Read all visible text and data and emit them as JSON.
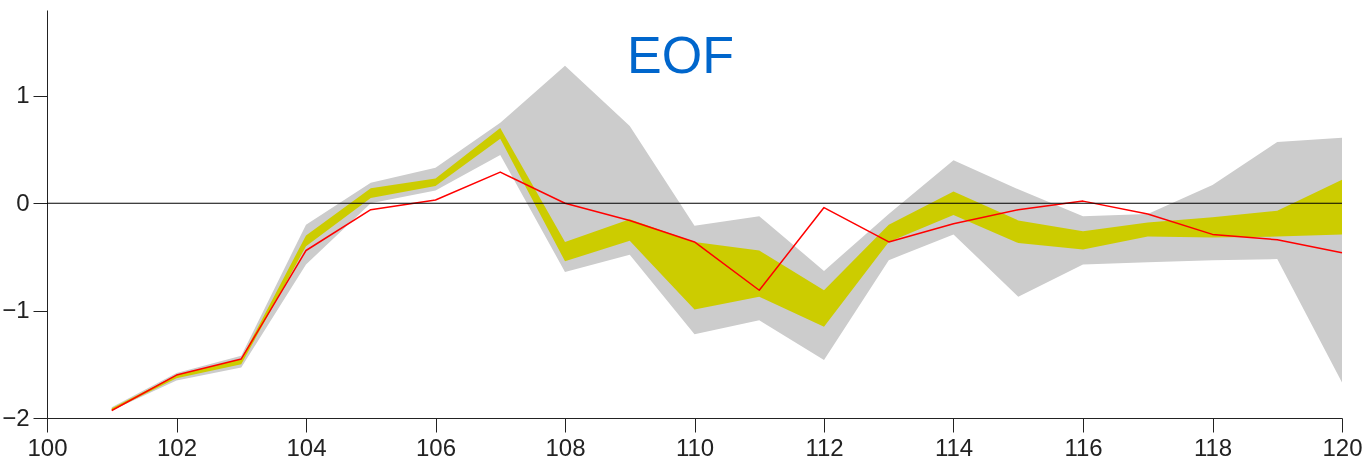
{
  "chart_data": {
    "type": "line",
    "title": "EOF",
    "x": [
      101,
      102,
      103,
      104,
      105,
      106,
      107,
      108,
      109,
      110,
      111,
      112,
      113,
      114,
      115,
      116,
      117,
      118,
      119,
      120
    ],
    "xlim": [
      100,
      120
    ],
    "xticks": [
      100,
      102,
      104,
      106,
      108,
      110,
      112,
      114,
      116,
      118,
      120
    ],
    "ylim": [
      -2,
      1.8
    ],
    "yticks": [
      -2,
      -1,
      0,
      1
    ],
    "series": [
      {
        "type": "area",
        "color": "#cccccc",
        "values": [
          null,
          null,
          null,
          null,
          null,
          null,
          null,
          null,
          null,
          null,
          null,
          null,
          null,
          null,
          null,
          null,
          null,
          null,
          null,
          null
        ],
        "lower": [
          -1.93,
          -1.65,
          -1.53,
          -0.57,
          0.0,
          0.12,
          0.45,
          -0.64,
          -0.48,
          -1.22,
          -1.09,
          -1.46,
          -0.53,
          -0.29,
          -0.87,
          -0.57,
          -0.55,
          -0.53,
          -0.52,
          -1.67
        ],
        "upper": [
          -1.9,
          -1.58,
          -1.42,
          -0.2,
          0.19,
          0.33,
          0.75,
          1.28,
          0.72,
          -0.21,
          -0.12,
          -0.63,
          -0.1,
          0.4,
          0.13,
          -0.12,
          -0.1,
          0.17,
          0.57,
          0.61
        ]
      },
      {
        "type": "area",
        "color": "#cccc00",
        "values": [
          null,
          null,
          null,
          null,
          null,
          null,
          null,
          null,
          null,
          null,
          null,
          null,
          null,
          null,
          null,
          null,
          null,
          null,
          null,
          null
        ],
        "lower": [
          -1.93,
          -1.63,
          -1.5,
          -0.4,
          0.05,
          0.16,
          0.6,
          -0.54,
          -0.35,
          -0.99,
          -0.87,
          -1.15,
          -0.36,
          -0.11,
          -0.37,
          -0.43,
          -0.31,
          -0.32,
          -0.31,
          -0.29
        ],
        "upper": [
          -1.91,
          -1.6,
          -1.45,
          -0.3,
          0.14,
          0.23,
          0.7,
          -0.36,
          -0.15,
          -0.36,
          -0.44,
          -0.81,
          -0.2,
          0.11,
          -0.16,
          -0.26,
          -0.18,
          -0.13,
          -0.07,
          0.22
        ]
      },
      {
        "type": "line",
        "color": "#ff0000",
        "values": [
          -1.93,
          -1.6,
          -1.45,
          -0.44,
          -0.06,
          0.03,
          0.29,
          0.0,
          -0.16,
          -0.36,
          -0.81,
          -0.04,
          -0.36,
          -0.19,
          -0.06,
          0.02,
          -0.1,
          -0.29,
          -0.34,
          -0.46
        ]
      }
    ],
    "ref_lines": [
      {
        "axis": "y",
        "value": 0,
        "color": "#000000"
      }
    ]
  }
}
